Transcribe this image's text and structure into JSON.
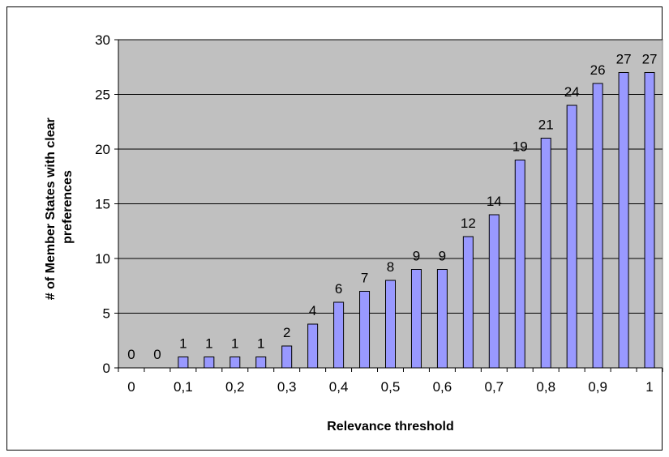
{
  "chart_data": {
    "type": "bar",
    "categories": [
      "0",
      "",
      "0,1",
      "",
      "0,2",
      "",
      "0,3",
      "",
      "0,4",
      "",
      "0,5",
      "",
      "0,6",
      "",
      "0,7",
      "",
      "0,8",
      "",
      "0,9",
      "",
      "1"
    ],
    "x": [
      0,
      0.05,
      0.1,
      0.15,
      0.2,
      0.25,
      0.3,
      0.35,
      0.4,
      0.45,
      0.5,
      0.55,
      0.6,
      0.65,
      0.7,
      0.75,
      0.8,
      0.85,
      0.9,
      0.95,
      1
    ],
    "values": [
      0,
      0,
      1,
      1,
      1,
      1,
      2,
      4,
      6,
      7,
      8,
      9,
      9,
      12,
      14,
      19,
      21,
      24,
      26,
      27,
      27
    ],
    "title": "",
    "xlabel": "Relevance threshold",
    "ylabel": [
      "# of Member States with clear",
      "preferences"
    ],
    "ylim": [
      0,
      30
    ],
    "yticks": [
      0,
      5,
      10,
      15,
      20,
      25,
      30
    ],
    "grid": "horizontal",
    "legend": "none",
    "colors": {
      "plot_bg": "#c0c0c0",
      "bar_fill": "#9999ff",
      "bar_stroke": "#000000",
      "grid": "#000000"
    }
  }
}
